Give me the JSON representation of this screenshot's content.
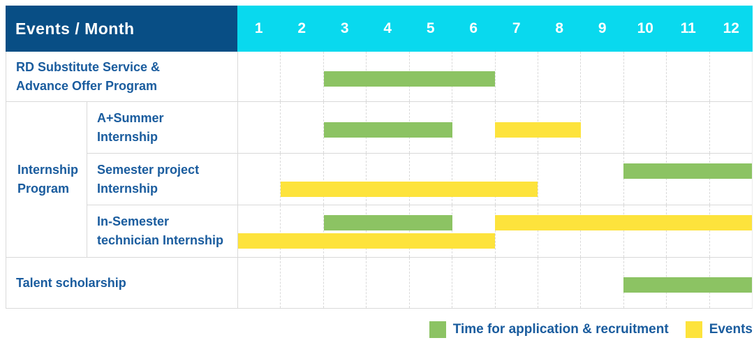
{
  "header": {
    "title": "Events / Month"
  },
  "group": {
    "label": "Internship Program",
    "label_lines": [
      "Internship",
      "Program"
    ]
  },
  "colors": {
    "header_bg": "#084e85",
    "month_header_bg": "#09d9ee",
    "header_text": "#ffffff",
    "label_text": "#1a5c9e",
    "grid_line": "#d9d9d9",
    "bar_green": "#8cc363",
    "bar_yellow": "#fde33c"
  },
  "legend": {
    "items": [
      {
        "key": "recruitment",
        "label": "Time for application & recruitment",
        "color": "#8cc363"
      },
      {
        "key": "event",
        "label": "Events",
        "color": "#fde33c"
      }
    ]
  },
  "chart_data": {
    "type": "bar",
    "subtype": "gantt",
    "title": "Events / Month",
    "xlabel": "Month",
    "x_ticks": [
      "1",
      "2",
      "3",
      "4",
      "5",
      "6",
      "7",
      "8",
      "9",
      "10",
      "11",
      "12"
    ],
    "x_range": [
      1,
      12
    ],
    "grid": true,
    "legend_position": "bottom-right",
    "bar_types": {
      "recruitment": "Time for application & recruitment",
      "event": "Events"
    },
    "tasks": [
      {
        "name": "RD Substitute Service & Advance Offer Program",
        "label_lines": [
          "RD Substitute Service &",
          "Advance Offer Program"
        ],
        "group": null,
        "bars": [
          {
            "type": "recruitment",
            "start_month": 3,
            "end_month": 6,
            "line": 1
          }
        ]
      },
      {
        "name": "A+Summer Internship",
        "label_lines": [
          "A+Summer",
          "Internship"
        ],
        "group": "Internship Program",
        "bars": [
          {
            "type": "recruitment",
            "start_month": 3,
            "end_month": 5,
            "line": 1
          },
          {
            "type": "event",
            "start_month": 7,
            "end_month": 8,
            "line": 1
          }
        ]
      },
      {
        "name": "Semester project Internship",
        "label_lines": [
          "Semester project",
          "Internship"
        ],
        "group": "Internship Program",
        "bars": [
          {
            "type": "recruitment",
            "start_month": 10,
            "end_month": 12,
            "line": 1
          },
          {
            "type": "event",
            "start_month": 2,
            "end_month": 7,
            "line": 2
          }
        ]
      },
      {
        "name": "In-Semester technician Internship",
        "label_lines": [
          "In-Semester",
          "technician Internship"
        ],
        "group": "Internship Program",
        "bars": [
          {
            "type": "recruitment",
            "start_month": 3,
            "end_month": 5,
            "line": 1
          },
          {
            "type": "event",
            "start_month": 7,
            "end_month": 12,
            "line": 1
          },
          {
            "type": "event",
            "start_month": 1,
            "end_month": 6,
            "line": 2
          }
        ]
      },
      {
        "name": "Talent scholarship",
        "label_lines": [
          "Talent scholarship"
        ],
        "group": null,
        "bars": [
          {
            "type": "recruitment",
            "start_month": 10,
            "end_month": 12,
            "line": 1
          }
        ]
      }
    ]
  }
}
